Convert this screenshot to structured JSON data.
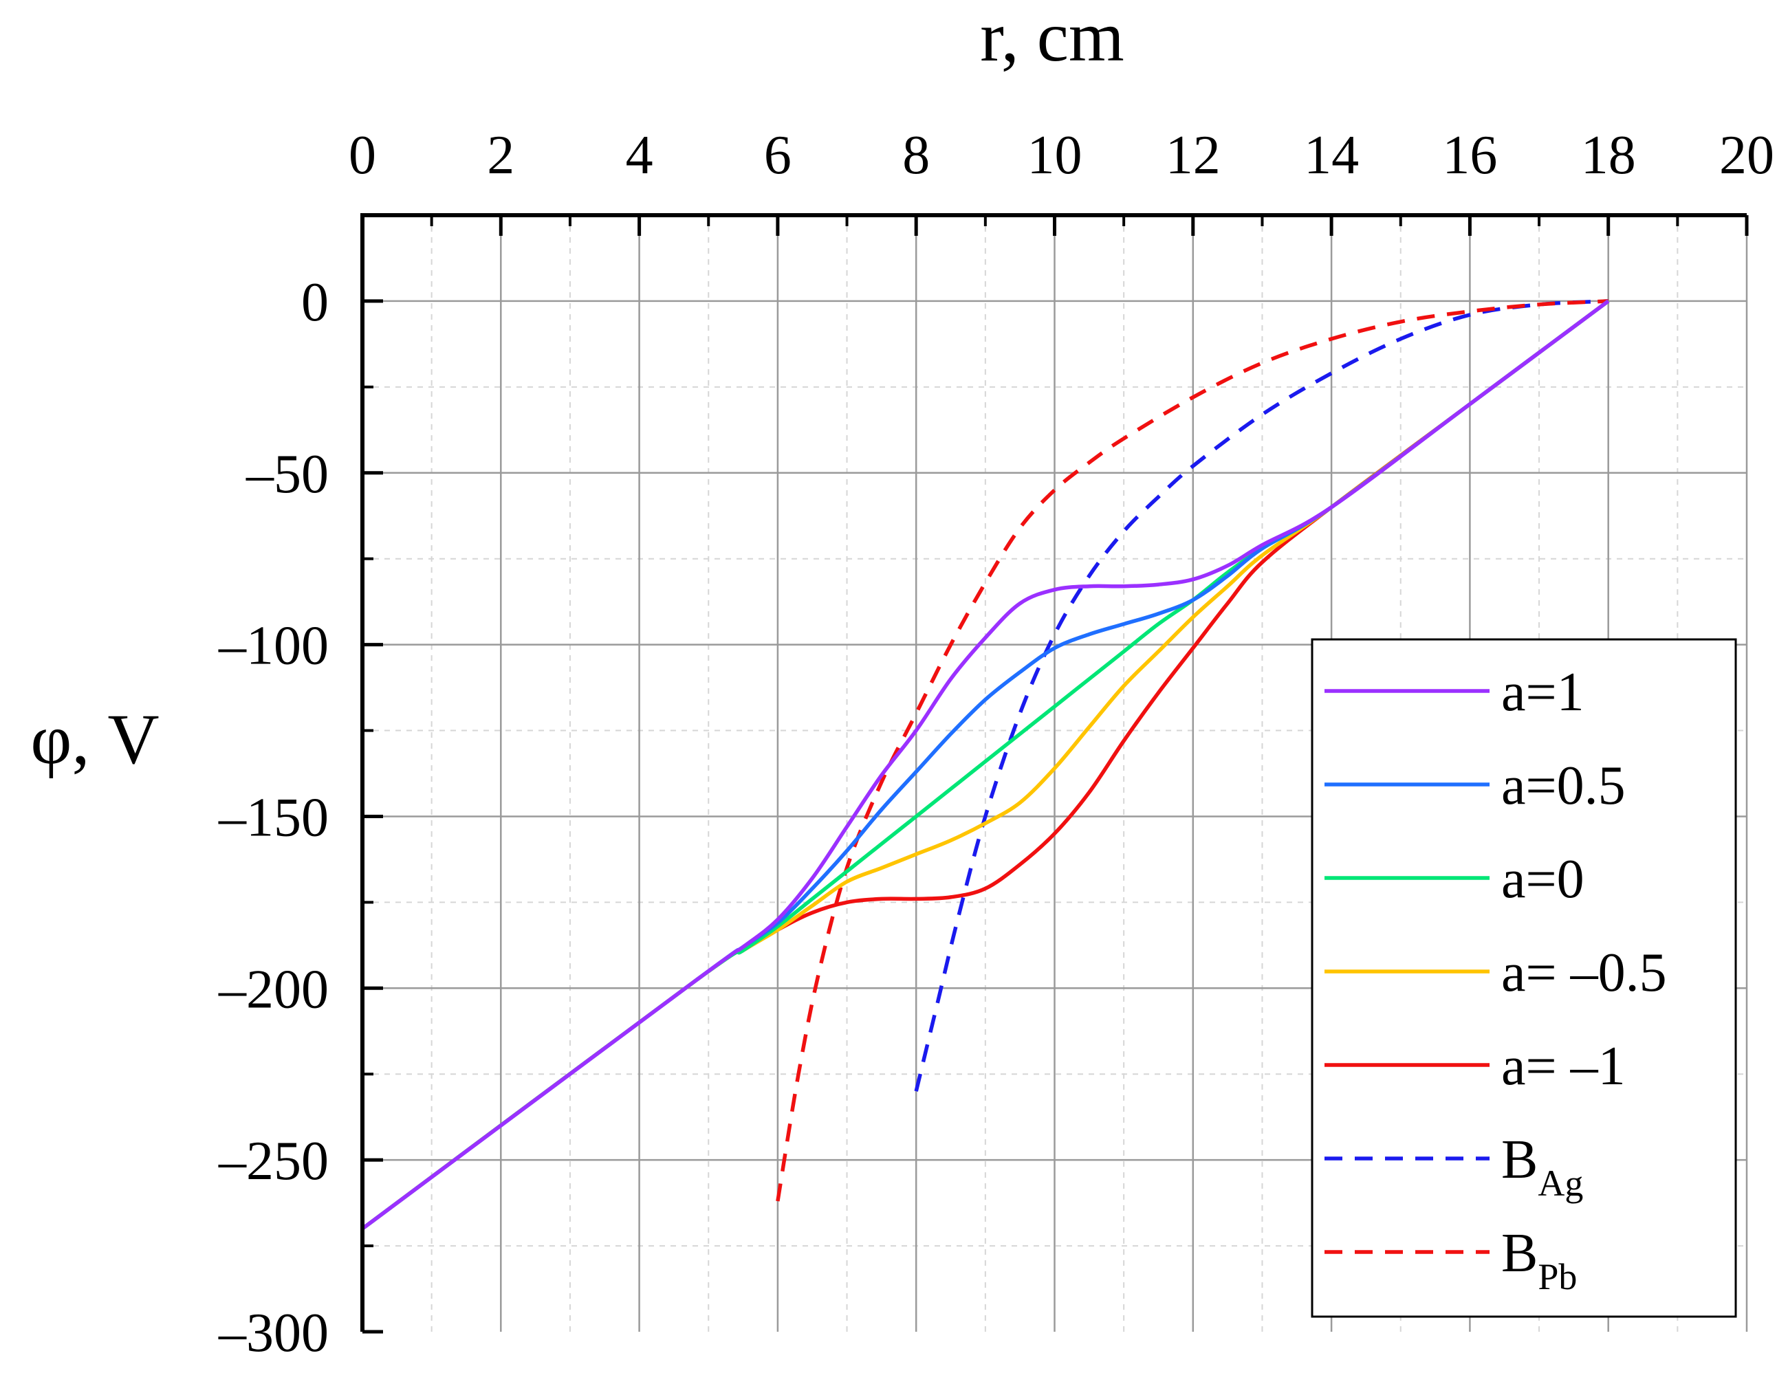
{
  "chart_data": {
    "type": "line",
    "title": "",
    "xlabel": "r, cm",
    "ylabel": "φ, V",
    "xlim": [
      0,
      20
    ],
    "ylim": [
      -300,
      25
    ],
    "x_ticks": [
      0,
      2,
      4,
      6,
      8,
      10,
      12,
      14,
      16,
      18,
      20
    ],
    "x_tick_labels": [
      "0",
      "2",
      "4",
      "6",
      "8",
      "10",
      "12",
      "14",
      "16",
      "18",
      "20"
    ],
    "y_ticks": [
      0,
      -50,
      -100,
      -150,
      -200,
      -250,
      -300
    ],
    "y_tick_labels": [
      "0",
      "–50",
      "–100",
      "–150",
      "–200",
      "–250",
      "–300"
    ],
    "grid": true,
    "legend_position": "bottom-right",
    "series": [
      {
        "name": "a=1",
        "label": "a=1",
        "color": "#9B30FF",
        "style": "solid",
        "x": [
          0,
          4.8,
          5.5,
          6,
          6.5,
          7,
          7.5,
          8,
          8.5,
          9,
          9.5,
          10,
          10.5,
          11,
          11.5,
          12,
          12.5,
          13,
          14,
          16,
          18
        ],
        "y": [
          -270,
          -198,
          -188,
          -180,
          -168,
          -153,
          -138,
          -125,
          -110,
          -98,
          -88,
          -84,
          -83,
          -83,
          -82.5,
          -81,
          -77,
          -71,
          -60,
          -30,
          0
        ]
      },
      {
        "name": "a=0.5",
        "label": "a=0.5",
        "color": "#1F6FFF",
        "style": "solid",
        "x": [
          0,
          4.8,
          5.5,
          6,
          6.5,
          7,
          7.5,
          8,
          8.5,
          9,
          9.5,
          10,
          10.5,
          11,
          11.5,
          12,
          12.5,
          13,
          14,
          16,
          18
        ],
        "y": [
          -270,
          -198,
          -188,
          -181,
          -171,
          -160,
          -148,
          -137,
          -126,
          -116,
          -108,
          -101,
          -97,
          -94,
          -91,
          -87,
          -80,
          -72,
          -60,
          -30,
          0
        ]
      },
      {
        "name": "a=0",
        "label": "a=0",
        "color": "#00E676",
        "style": "solid",
        "x": [
          0,
          4.8,
          5.5,
          6,
          6.5,
          7,
          7.5,
          8,
          8.5,
          9,
          9.5,
          10,
          10.5,
          11,
          11.5,
          12,
          12.5,
          13,
          14,
          16,
          18
        ],
        "y": [
          -270,
          -198,
          -189,
          -182,
          -174,
          -166,
          -158,
          -150,
          -142,
          -134,
          -126,
          -118,
          -110,
          -102,
          -94,
          -87,
          -79,
          -72,
          -60,
          -30,
          0
        ]
      },
      {
        "name": "a=-0.5",
        "label": "a= –0.5",
        "color": "#FFC400",
        "style": "solid",
        "x": [
          0,
          4.8,
          5.5,
          6,
          6.5,
          7,
          7.5,
          8,
          8.5,
          9,
          9.5,
          10,
          10.5,
          11,
          11.5,
          12,
          12.5,
          13,
          14,
          16,
          18
        ],
        "y": [
          -270,
          -198,
          -189,
          -183,
          -176,
          -169,
          -165,
          -161,
          -157,
          -152,
          -146,
          -136,
          -124,
          -112,
          -102,
          -92,
          -83,
          -74,
          -60,
          -30,
          0
        ]
      },
      {
        "name": "a=-1",
        "label": "a= –1",
        "color": "#F01010",
        "style": "solid",
        "x": [
          0,
          4.8,
          5.5,
          6,
          6.5,
          7,
          7.5,
          8,
          8.5,
          9,
          9.5,
          10,
          10.5,
          11,
          11.5,
          12,
          12.5,
          13,
          14,
          16,
          18
        ],
        "y": [
          -270,
          -198,
          -189,
          -183,
          -178,
          -175,
          -174,
          -174,
          -173.5,
          -171,
          -164,
          -155,
          -143,
          -128,
          -114,
          -101,
          -88,
          -76,
          -60,
          -30,
          0
        ]
      },
      {
        "name": "B_Ag",
        "label": "B",
        "label_sub": "Ag",
        "color": "#1A1AEE",
        "style": "dashed",
        "x": [
          8,
          8.3,
          8.6,
          9,
          9.5,
          10,
          10.5,
          11,
          11.5,
          12,
          13,
          14,
          15,
          16,
          17,
          18
        ],
        "y": [
          -230,
          -205,
          -180,
          -150,
          -120,
          -97,
          -80,
          -67,
          -57,
          -48,
          -33,
          -21,
          -11,
          -4,
          -1,
          0
        ]
      },
      {
        "name": "B_Pb",
        "label": "B",
        "label_sub": "Pb",
        "color": "#F01010",
        "style": "dashed",
        "x": [
          6,
          6.3,
          6.6,
          7,
          7.5,
          8,
          8.5,
          9,
          9.5,
          10,
          10.5,
          11,
          12,
          13,
          14,
          15,
          16,
          17,
          18
        ],
        "y": [
          -262,
          -225,
          -195,
          -165,
          -140,
          -120,
          -100,
          -82,
          -66,
          -55,
          -47,
          -40,
          -28,
          -18,
          -11,
          -6,
          -3,
          -1,
          0
        ]
      }
    ]
  }
}
